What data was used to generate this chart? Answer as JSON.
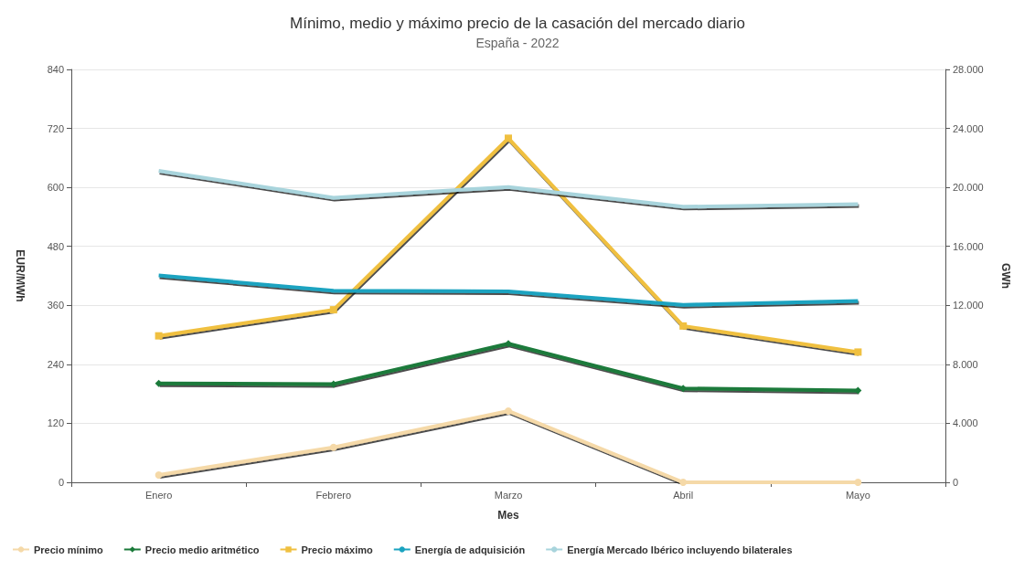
{
  "chart_data": {
    "type": "line",
    "title": "Mínimo, medio y máximo precio de la casación del mercado diario",
    "subtitle": "España - 2022",
    "xlabel": "Mes",
    "ylabel": "EUR/MWh",
    "y2label": "GWh",
    "categories": [
      "Enero",
      "Febrero",
      "Marzo",
      "Abril",
      "Mayo"
    ],
    "series": [
      {
        "name": "Precio mínimo",
        "color": "#f5d9a8",
        "marker": "circle",
        "values": [
          15,
          71,
          145,
          0,
          0
        ]
      },
      {
        "name": "Precio medio aritmético",
        "color": "#1a7a3a",
        "marker": "diamond",
        "values": [
          201,
          200,
          282,
          191,
          187
        ]
      },
      {
        "name": "Precio máximo",
        "color": "#f0c040",
        "marker": "square",
        "values": [
          298,
          351,
          700,
          318,
          265
        ]
      },
      {
        "name": "Energía de adquisición",
        "color": "#1aa3c0",
        "marker": "none",
        "axis": "y2",
        "values": [
          14030,
          13000,
          12950,
          12040,
          12290
        ]
      },
      {
        "name": "Energía Mercado Ibérico incluyendo bilaterales",
        "color": "#a8d4dc",
        "marker": "none",
        "axis": "y2",
        "values": [
          21130,
          19300,
          20030,
          18690,
          18870
        ]
      }
    ],
    "ylim": [
      0,
      840
    ],
    "yticks": [
      0,
      120,
      240,
      360,
      480,
      600,
      720,
      840
    ],
    "y2lim": [
      0,
      28000
    ],
    "y2ticks": [
      0,
      {
        "value": 4000,
        "label": "4.000"
      },
      {
        "value": 8000,
        "label": "8.000"
      },
      {
        "value": 12000,
        "label": "12.000"
      },
      {
        "value": 16000,
        "label": "16.000"
      },
      {
        "value": 20000,
        "label": "20.000"
      },
      {
        "value": 24000,
        "label": "24.000"
      },
      {
        "value": 28000,
        "label": "28.000"
      }
    ],
    "grid": "y",
    "legend": "bottom left"
  }
}
